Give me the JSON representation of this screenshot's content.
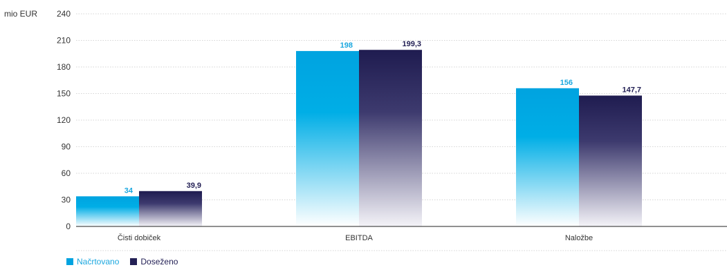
{
  "chart_data": {
    "type": "bar",
    "ylabel": "mio EUR",
    "ylim": [
      0,
      240
    ],
    "yticks": [
      0,
      30,
      60,
      90,
      120,
      150,
      180,
      210,
      240
    ],
    "categories": [
      "Čisti dobiček",
      "EBITDA",
      "Naložbe"
    ],
    "series": [
      {
        "name": "Načrtovano",
        "values": [
          34,
          198,
          156
        ],
        "labels": [
          "34",
          "198",
          "156"
        ],
        "color": "#00a3e0",
        "label_color": "#1aa7df"
      },
      {
        "name": "Doseženo",
        "values": [
          39.9,
          199.3,
          147.7
        ],
        "labels": [
          "39,9",
          "199,3",
          "147,7"
        ],
        "color": "#232055",
        "label_color": "#232055"
      }
    ],
    "grid": true,
    "legend_position": "bottom-left"
  }
}
